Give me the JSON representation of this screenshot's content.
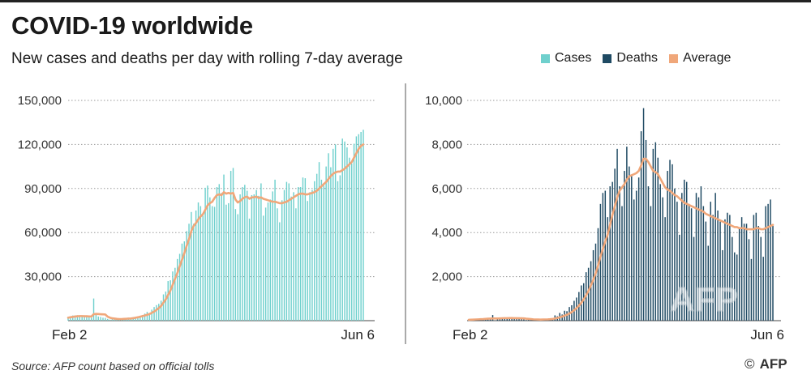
{
  "header": {
    "title": "COVID-19 worldwide",
    "subtitle": "New cases and deaths per day with rolling 7-day average"
  },
  "legend": [
    {
      "label": "Cases",
      "color": "#6fd0cd"
    },
    {
      "label": "Deaths",
      "color": "#1f4a63"
    },
    {
      "label": "Average",
      "color": "#f0a77a"
    }
  ],
  "footer": {
    "source": "Source: AFP count based on official tolls",
    "credit_symbol": "©",
    "credit_text": "AFP"
  },
  "watermark": "AFP",
  "chart_data": [
    {
      "type": "bar",
      "name": "cases",
      "x_start_label": "Feb 2",
      "x_end_label": "Jun 6",
      "yticks": [
        "30,000",
        "60,000",
        "90,000",
        "120,000",
        "150,000"
      ],
      "ylim": [
        0,
        150000
      ],
      "grid": true,
      "bar_color": "#6fd0cd",
      "avg_color": "#f0a77a",
      "series": [
        {
          "name": "Cases",
          "type": "bar",
          "values": [
            2600,
            3000,
            3500,
            3600,
            3700,
            3500,
            3000,
            2900,
            2500,
            2300,
            2000,
            15100,
            5000,
            2800,
            2500,
            2000,
            1900,
            1200,
            700,
            1000,
            800,
            1000,
            1500,
            1000,
            1600,
            1800,
            2000,
            1700,
            2400,
            2400,
            2200,
            3100,
            3800,
            4800,
            6000,
            5200,
            7500,
            9300,
            10600,
            11500,
            13600,
            17900,
            19800,
            27000,
            27500,
            33500,
            36000,
            42000,
            45500,
            52500,
            54000,
            61000,
            66000,
            74000,
            66000,
            75000,
            80500,
            78000,
            71500,
            90500,
            92000,
            84000,
            78000,
            77500,
            91000,
            93000,
            87000,
            99500,
            79000,
            80000,
            102000,
            104000,
            76000,
            72500,
            86000,
            91000,
            92500,
            88500,
            69500,
            85500,
            86000,
            89000,
            85000,
            93500,
            71500,
            77000,
            80500,
            82500,
            88000,
            96000,
            76500,
            67000,
            82000,
            89000,
            94500,
            93500,
            84500,
            87500,
            76500,
            91000,
            91000,
            97500,
            97000,
            81500,
            87500,
            89000,
            95000,
            100000,
            108000,
            96000,
            92000,
            105000,
            114000,
            104500,
            117000,
            120000,
            95000,
            99000,
            124000,
            122000,
            118000,
            111000,
            107000,
            120500,
            125500,
            127000,
            128500,
            130000
          ]
        },
        {
          "name": "Average",
          "type": "line",
          "values": [
            2000,
            2300,
            2600,
            2800,
            3000,
            3100,
            3100,
            3000,
            3000,
            2900,
            2800,
            4400,
            4600,
            4500,
            4400,
            4300,
            4200,
            2700,
            2000,
            1600,
            1400,
            1200,
            1100,
            1100,
            1200,
            1300,
            1400,
            1500,
            1700,
            2000,
            2300,
            2700,
            3100,
            3500,
            4000,
            4500,
            5300,
            6200,
            7300,
            8500,
            10000,
            12300,
            14500,
            17500,
            20500,
            24500,
            28500,
            32500,
            37000,
            41500,
            46000,
            51000,
            55500,
            61000,
            64500,
            66500,
            69000,
            71000,
            72500,
            75500,
            78500,
            80000,
            81000,
            83500,
            85500,
            86000,
            85500,
            87500,
            86500,
            87000,
            86500,
            87000,
            82500,
            80500,
            81500,
            83000,
            84000,
            84500,
            83000,
            84000,
            84000,
            84500,
            83500,
            84000,
            83000,
            82500,
            82000,
            81500,
            81000,
            81000,
            80500,
            80000,
            80000,
            80500,
            81000,
            82000,
            83000,
            84000,
            85000,
            86000,
            86500,
            86500,
            86000,
            86000,
            86500,
            87000,
            87500,
            88500,
            90000,
            91500,
            93000,
            94500,
            96500,
            98500,
            100000,
            101000,
            101500,
            101500,
            102500,
            103500,
            105000,
            106500,
            108000,
            111000,
            114000,
            117000,
            119000,
            120000
          ]
        }
      ]
    },
    {
      "type": "bar",
      "name": "deaths",
      "x_start_label": "Feb 2",
      "x_end_label": "Jun 6",
      "yticks": [
        "2,000",
        "4,000",
        "6,000",
        "8,000",
        "10,000"
      ],
      "ylim": [
        0,
        10000
      ],
      "grid": true,
      "bar_color": "#1f4a63",
      "avg_color": "#f0a77a",
      "series": [
        {
          "name": "Deaths",
          "type": "bar",
          "values": [
            45,
            57,
            64,
            66,
            73,
            86,
            89,
            97,
            108,
            97,
            254,
            13,
            143,
            142,
            106,
            98,
            139,
            115,
            118,
            109,
            97,
            150,
            71,
            52,
            29,
            44,
            47,
            35,
            42,
            64,
            53,
            67,
            64,
            70,
            100,
            103,
            240,
            200,
            350,
            280,
            450,
            430,
            620,
            700,
            900,
            1050,
            1300,
            1600,
            1700,
            2200,
            2400,
            2700,
            3200,
            3500,
            4200,
            5300,
            5800,
            5900,
            4700,
            6100,
            6300,
            6900,
            7800,
            6100,
            5200,
            6800,
            7900,
            7000,
            6600,
            5500,
            5900,
            6500,
            8600,
            9650,
            8200,
            6100,
            5200,
            7800,
            8100,
            7400,
            6200,
            5600,
            4700,
            6800,
            7300,
            7100,
            6000,
            5400,
            3900,
            5800,
            6400,
            6300,
            5300,
            5100,
            3800,
            5800,
            5600,
            6100,
            5200,
            4500,
            3400,
            5400,
            4800,
            5800,
            5000,
            4500,
            3200,
            4600,
            4900,
            4800,
            3800,
            3100,
            3000,
            4200,
            4700,
            4400,
            4400,
            3700,
            2800,
            4800,
            4900,
            4300,
            3800,
            2900,
            5200,
            5300,
            5500,
            4300
          ]
        },
        {
          "name": "Average",
          "type": "line",
          "values": [
            40,
            45,
            50,
            55,
            60,
            65,
            70,
            80,
            90,
            95,
            100,
            100,
            100,
            105,
            110,
            115,
            115,
            120,
            118,
            115,
            112,
            110,
            108,
            105,
            90,
            80,
            70,
            60,
            55,
            52,
            50,
            52,
            55,
            58,
            65,
            75,
            100,
            120,
            150,
            185,
            225,
            270,
            320,
            390,
            470,
            570,
            680,
            810,
            970,
            1150,
            1350,
            1600,
            1850,
            2150,
            2500,
            2900,
            3250,
            3600,
            3900,
            4350,
            4800,
            5200,
            5600,
            5900,
            6050,
            6200,
            6400,
            6550,
            6600,
            6650,
            6700,
            6800,
            7050,
            7350,
            7350,
            7200,
            7000,
            6800,
            6750,
            6650,
            6450,
            6250,
            6050,
            5950,
            5900,
            5800,
            5700,
            5650,
            5550,
            5450,
            5350,
            5300,
            5250,
            5200,
            5150,
            5100,
            5050,
            5000,
            4950,
            4850,
            4800,
            4750,
            4700,
            4650,
            4600,
            4550,
            4500,
            4450,
            4400,
            4350,
            4300,
            4250,
            4250,
            4200,
            4200,
            4200,
            4150,
            4150,
            4150,
            4150,
            4200,
            4200,
            4150,
            4150,
            4200,
            4250,
            4300,
            4350
          ]
        }
      ]
    }
  ]
}
